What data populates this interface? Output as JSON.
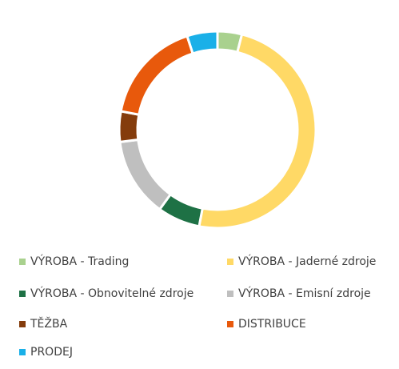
{
  "chart_data": {
    "type": "donut",
    "categories": [
      "VÝROBA - Trading",
      "VÝROBA - Jaderné zdroje",
      "VÝROBA - Obnovitelné zdroje",
      "VÝROBA - Emisní zdroje",
      "TĚŽBA",
      "DISTRIBUCE",
      "PRODEJ"
    ],
    "values": [
      4,
      49,
      7,
      13,
      5,
      17,
      5
    ],
    "colors": [
      "#a9d18e",
      "#ffd966",
      "#1e7145",
      "#bfbfbf",
      "#843c0c",
      "#e8590c",
      "#1ab0e8"
    ],
    "legend": "bottom"
  }
}
